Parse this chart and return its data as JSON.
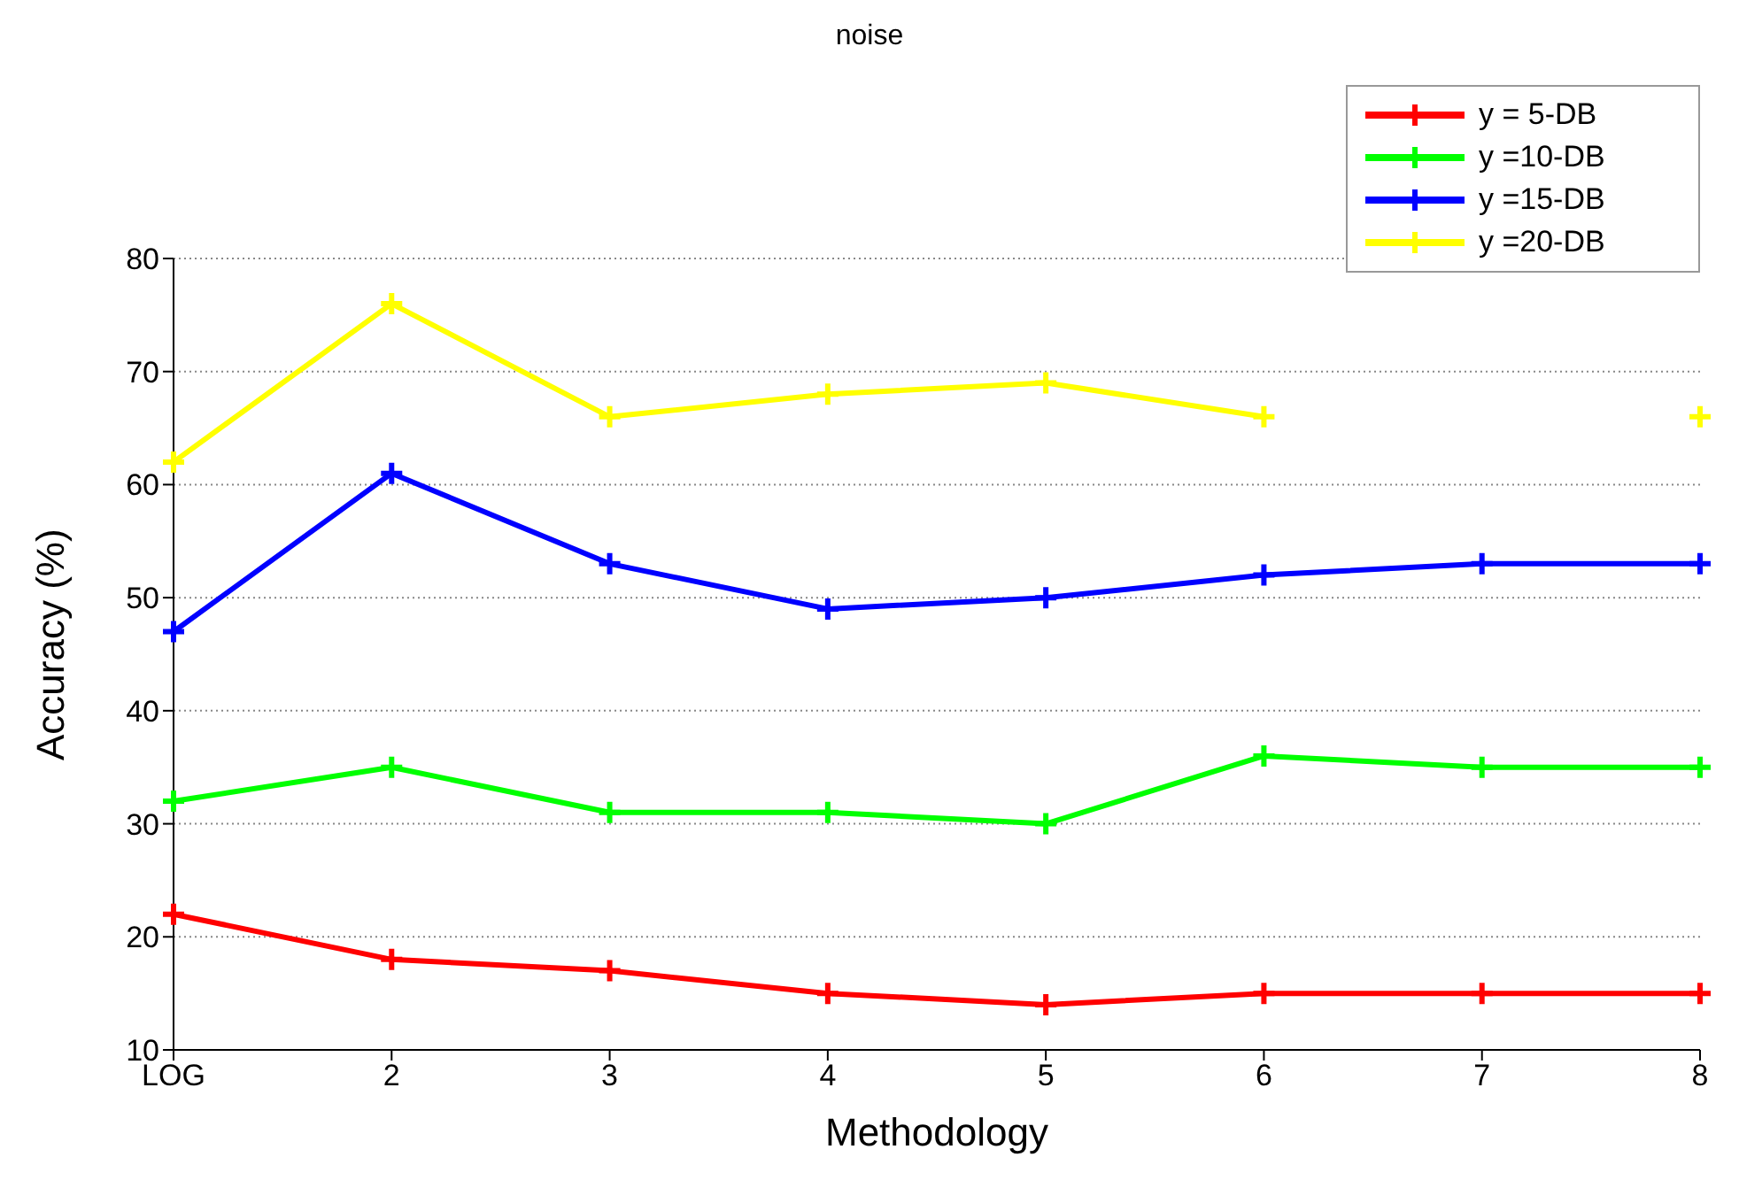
{
  "chart_data": {
    "type": "line",
    "title": "noise",
    "xlabel": "Methodology",
    "ylabel": "Accuracy (%)",
    "categories": [
      "LOG",
      "2",
      "3",
      "4",
      "5",
      "6",
      "7",
      "8"
    ],
    "series": [
      {
        "name": "y = 5-DB",
        "color": "#ff0000",
        "values": [
          22,
          18,
          17,
          15,
          14,
          15,
          15,
          15
        ]
      },
      {
        "name": "y =10-DB",
        "color": "#00ff00",
        "values": [
          32,
          35,
          31,
          31,
          30,
          36,
          35,
          35
        ]
      },
      {
        "name": "y =15-DB",
        "color": "#0000ff",
        "values": [
          47,
          61,
          53,
          49,
          50,
          52,
          53,
          53
        ]
      },
      {
        "name": "y =20-DB",
        "color": "#ffff00",
        "values": [
          62,
          76,
          66,
          68,
          69,
          66,
          null,
          66
        ]
      }
    ],
    "ylim": [
      10,
      80
    ],
    "yticks": [
      10,
      20,
      30,
      40,
      50,
      60,
      70,
      80
    ],
    "grid": "y",
    "legend": "top right",
    "marker": "cross",
    "line_style": "solid"
  }
}
